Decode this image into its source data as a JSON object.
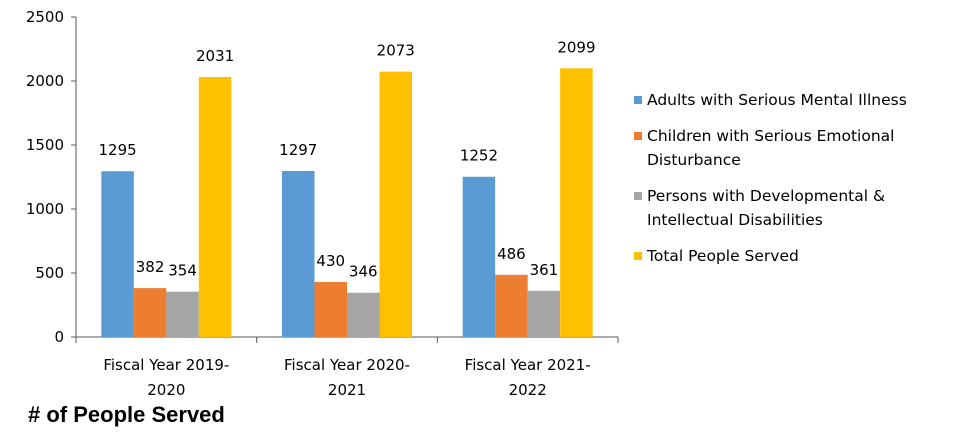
{
  "chart_data": {
    "type": "bar",
    "title": "# of People Served",
    "categories": [
      [
        "Fiscal Year 2019-",
        "2020"
      ],
      [
        "Fiscal Year 2020-",
        "2021"
      ],
      [
        "Fiscal Year 2021-",
        "2022"
      ]
    ],
    "series": [
      {
        "name": "Adults with Serious Mental Illness",
        "values": [
          1295,
          1297,
          1252
        ],
        "color": "#5b9bd5"
      },
      {
        "name": "Children with Serious Emotional Disturbance",
        "values": [
          382,
          430,
          486
        ],
        "color": "#ed7d31"
      },
      {
        "name": "Persons with Developmental & Intellectual Disabilities",
        "values": [
          354,
          346,
          361
        ],
        "color": "#a5a5a5"
      },
      {
        "name": "Total People Served",
        "values": [
          2031,
          2073,
          2099
        ],
        "color": "#ffc000"
      }
    ],
    "ylim": [
      0,
      2500
    ],
    "yticks": [
      "0",
      "500",
      "1000",
      "1500",
      "2000",
      "2500"
    ],
    "grid": false,
    "legend": "right",
    "data_labels": true
  }
}
